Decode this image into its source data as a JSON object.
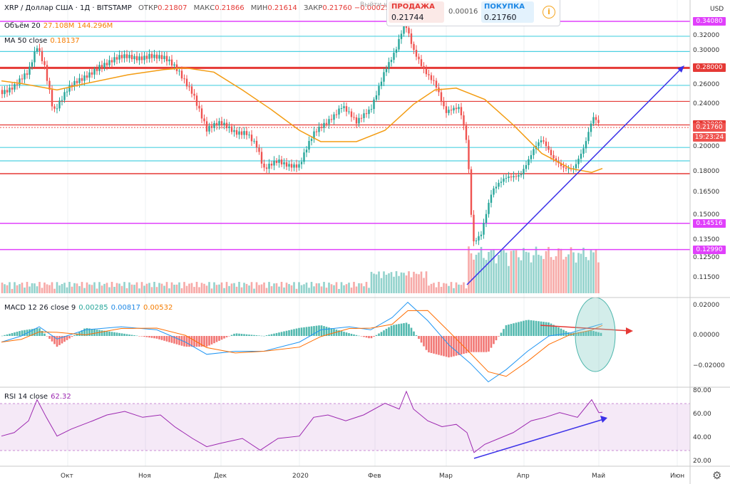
{
  "header": {
    "symbol": "XRP / Доллар США · 1Д · BITSTAMP",
    "open_label": "ОТКР",
    "open": "0.21807",
    "high_label": "МАКС",
    "high": "0.21866",
    "low_label": "МИН",
    "low": "0.21614",
    "close_label": "ЗАКР",
    "close": "0.21760",
    "change": "−0.00025 (−0.11%)"
  },
  "volume_legend": {
    "label": "Объём 20",
    "v1": "27.108M",
    "v2": "144.296M"
  },
  "ma_legend": {
    "label": "MA 50 close",
    "value": "0.18137"
  },
  "macd_legend": {
    "label": "MACD 12 26 close 9",
    "hist": "0.00285",
    "macd": "0.00817",
    "signal": "0.00532"
  },
  "rsi_legend": {
    "label": "RSI 14 close",
    "value": "62.32"
  },
  "trade_panel": {
    "sell_label": "ПРОДАЖА",
    "sell_price": "0.21744",
    "spread": "0.00016",
    "buy_label": "ПОКУПКА",
    "buy_price": "0.21760",
    "ghost": "Выйти из режима"
  },
  "currency": "USD",
  "price_axis": [
    "0.32000",
    "0.30000",
    "0.28000",
    "0.26000",
    "0.24000",
    "0.22000",
    "0.20000",
    "0.18000",
    "0.16500",
    "0.15000",
    "0.13500",
    "0.12500",
    "0.11500"
  ],
  "price_tags": [
    {
      "text": "0.34080",
      "color": "#e040fb"
    },
    {
      "text": "0.28000",
      "color": "#e53935"
    },
    {
      "text": "0.22000",
      "color": "#e53935"
    },
    {
      "text": "0.21760",
      "color": "#ef5350"
    },
    {
      "text": "19:23:24",
      "color": "#ef5350"
    },
    {
      "text": "0.14516",
      "color": "#e040fb"
    },
    {
      "text": "0.12990",
      "color": "#e040fb"
    }
  ],
  "macd_axis": [
    "0.02000",
    "0.00000",
    "−0.02000"
  ],
  "rsi_axis": [
    "80.00",
    "60.00",
    "40.00",
    "20.00"
  ],
  "time_axis": [
    "Окт",
    "Ноя",
    "Дек",
    "2020",
    "Фев",
    "Мар",
    "Апр",
    "Май",
    "Июн"
  ],
  "colors": {
    "up": "#26a69a",
    "down": "#ef5350",
    "ma": "#f39c12",
    "macd": "#2196f3",
    "signal": "#ff6d00",
    "rsi": "#9c27b0"
  },
  "chart_data": {
    "type": "line",
    "series": [
      {
        "name": "XRP / Доллар США close",
        "x": [
          "Окт",
          "Ноя",
          "Дек",
          "2020",
          "Фев",
          "Мар",
          "Апр",
          "Май"
        ],
        "values": [
          0.26,
          0.29,
          0.22,
          0.19,
          0.24,
          0.3,
          0.17,
          0.2
        ]
      },
      {
        "name": "MA 50 close",
        "x": [
          "Окт",
          "Ноя",
          "Дек",
          "2020",
          "Фев",
          "Мар",
          "Апр",
          "Май"
        ],
        "values": [
          0.27,
          0.27,
          0.24,
          0.2,
          0.22,
          0.26,
          0.22,
          0.18
        ]
      }
    ],
    "horizontal_levels": [
      0.3408,
      0.32,
      0.3,
      0.28,
      0.26,
      0.243,
      0.22,
      0.2,
      0.189,
      0.179,
      0.14516,
      0.1299
    ],
    "macd_last": {
      "hist": 0.00285,
      "macd": 0.00817,
      "signal": 0.00532
    },
    "rsi_last": 62.32,
    "rsi_band": [
      30,
      70
    ]
  }
}
